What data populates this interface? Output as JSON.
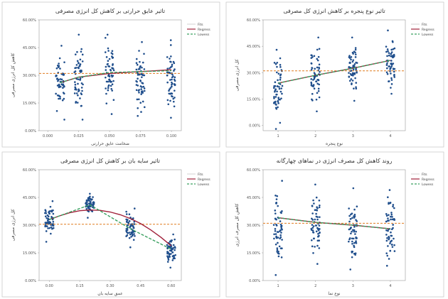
{
  "chart_data": [
    {
      "type": "scatter",
      "title": "تاثیر عایق حرارتی بر کاهش کل انرژی مصرفی",
      "xlabel": "ضخامت عایق حرارتی",
      "ylabel": "کاهش کل انرژی مصرفی",
      "x_ticks": [
        "0.000",
        "0.025",
        "0.050",
        "0.075",
        "0.100"
      ],
      "xlim": [
        -0.007,
        0.108
      ],
      "y_ticks": [
        "0.00%",
        "15.00%",
        "30.00%",
        "45.00%",
        "60.00%"
      ],
      "ylim": [
        0,
        60
      ],
      "x_groups": [
        0.01,
        0.025,
        0.05,
        0.075,
        0.1
      ],
      "group_ranges": [
        [
          6,
          46
        ],
        [
          6,
          52
        ],
        [
          9,
          52
        ],
        [
          8,
          48
        ],
        [
          7,
          49
        ]
      ],
      "series": [
        {
          "name": "Fits",
          "line": "solid",
          "color": "#d9d9d9",
          "x": [
            0.01,
            0.025,
            0.05,
            0.075,
            0.1
          ],
          "y": [
            26,
            29,
            31,
            32,
            33
          ]
        },
        {
          "name": "Regress",
          "line": "solid",
          "color": "#a0203a",
          "x": [
            0.01,
            0.025,
            0.05,
            0.075,
            0.1
          ],
          "y": [
            26,
            29,
            31,
            32,
            33
          ]
        },
        {
          "name": "Lowess",
          "line": "dashed",
          "color": "#3aa060",
          "x": [
            0.01,
            0.025,
            0.05,
            0.075,
            0.1
          ],
          "y": [
            26,
            29,
            31.5,
            32,
            32.5
          ]
        }
      ],
      "reference_line": 31,
      "legend": "top-right"
    },
    {
      "type": "scatter",
      "title": "تاثیر نوع پنجره بر کاهش انرژی کل مصرفی",
      "xlabel": "نوع پنجره",
      "ylabel": "کل انرژی مصرفی",
      "x_ticks": [
        "1",
        "2",
        "3",
        "4"
      ],
      "xlim": [
        0.6,
        4.4
      ],
      "y_ticks": [
        "0.00%",
        "15.00%",
        "30.00%",
        "45.00%",
        "60.00%"
      ],
      "ylim": [
        -3,
        60
      ],
      "x_groups": [
        1,
        2,
        3,
        4
      ],
      "group_ranges": [
        [
          -2,
          43
        ],
        [
          8,
          50
        ],
        [
          14,
          50
        ],
        [
          18,
          54
        ]
      ],
      "series": [
        {
          "name": "Fits",
          "line": "solid",
          "color": "#d9d9d9",
          "x": [
            1,
            2,
            3,
            4
          ],
          "y": [
            24,
            28.5,
            32.5,
            37
          ]
        },
        {
          "name": "Regress",
          "line": "solid",
          "color": "#a0203a",
          "x": [
            1,
            2,
            3,
            4
          ],
          "y": [
            24,
            28.5,
            32.5,
            37
          ]
        },
        {
          "name": "Lowess",
          "line": "dashed",
          "color": "#3aa060",
          "x": [
            1,
            2,
            3,
            4
          ],
          "y": [
            24,
            28.5,
            32.5,
            37
          ]
        }
      ],
      "reference_line": 31,
      "legend": "top-right"
    },
    {
      "type": "scatter",
      "title": "تاثیر سایه بان بر کاهش کل انرژی مصرفی",
      "xlabel": "عمق سایه بان",
      "ylabel": "کل انرژی مصرفی",
      "x_ticks": [
        "0.00",
        "0.15",
        "0.30",
        "0.45",
        "0.60"
      ],
      "xlim": [
        -0.05,
        0.65
      ],
      "y_ticks": [
        "0.00%",
        "15.00%",
        "30.00%",
        "45.00%",
        "60.00%"
      ],
      "ylim": [
        0,
        60
      ],
      "x_groups": [
        0.0,
        0.2,
        0.4,
        0.6
      ],
      "group_ranges": [
        [
          21,
          43
        ],
        [
          34,
          47
        ],
        [
          18,
          39
        ],
        [
          7,
          25
        ]
      ],
      "series": [
        {
          "name": "Fits",
          "line": "solid",
          "color": "#d9d9d9",
          "x": [
            0,
            0.05,
            0.1,
            0.15,
            0.2,
            0.25,
            0.3,
            0.35,
            0.4,
            0.45,
            0.5,
            0.55,
            0.6
          ],
          "y": [
            33,
            35,
            36.7,
            37.8,
            38.2,
            38,
            37.1,
            35.6,
            33.5,
            30.8,
            27.4,
            23.4,
            18.8
          ]
        },
        {
          "name": "Regress",
          "line": "solid",
          "color": "#a0203a",
          "x": [
            0,
            0.05,
            0.1,
            0.15,
            0.2,
            0.25,
            0.3,
            0.35,
            0.4,
            0.45,
            0.5,
            0.55,
            0.6
          ],
          "y": [
            33,
            35,
            36.7,
            37.8,
            38.2,
            38,
            37.1,
            35.6,
            33.5,
            30.8,
            27.4,
            23.4,
            18.8
          ]
        },
        {
          "name": "Lowess",
          "line": "dashed",
          "color": "#3aa060",
          "x": [
            0,
            0.2,
            0.4,
            0.6
          ],
          "y": [
            33,
            41,
            28,
            17
          ]
        }
      ],
      "reference_line": 30.5,
      "legend": "top-right"
    },
    {
      "type": "scatter",
      "title": "روند کاهش کل مصرف انرژی در نماهای چهارگانه",
      "xlabel": "نوع نما",
      "ylabel": "کاهش کل مصرف انرژی",
      "x_ticks": [
        "1",
        "2",
        "3",
        "4"
      ],
      "xlim": [
        0.6,
        4.4
      ],
      "y_ticks": [
        "0.00%",
        "15.00%",
        "30.00%",
        "45.00%",
        "60.00%"
      ],
      "ylim": [
        0,
        60
      ],
      "x_groups": [
        1,
        2,
        3,
        4
      ],
      "group_ranges": [
        [
          3,
          54
        ],
        [
          9,
          52
        ],
        [
          6,
          50
        ],
        [
          8,
          49
        ]
      ],
      "series": [
        {
          "name": "Fits",
          "line": "solid",
          "color": "#d9d9d9",
          "x": [
            1,
            2,
            3,
            4
          ],
          "y": [
            34,
            31.5,
            30,
            28
          ]
        },
        {
          "name": "Regress",
          "line": "solid",
          "color": "#a0203a",
          "x": [
            1,
            2,
            3,
            4
          ],
          "y": [
            34,
            31.5,
            30,
            28
          ]
        },
        {
          "name": "Lowess",
          "line": "dashed",
          "color": "#3aa060",
          "x": [
            1,
            2,
            3,
            4
          ],
          "y": [
            34,
            31.5,
            30,
            28
          ]
        }
      ],
      "reference_line": 31,
      "legend": "top-right"
    }
  ],
  "colors": {
    "point": "#1f4e8c",
    "reference": "#e07b1f",
    "frame": "#cccccc"
  }
}
